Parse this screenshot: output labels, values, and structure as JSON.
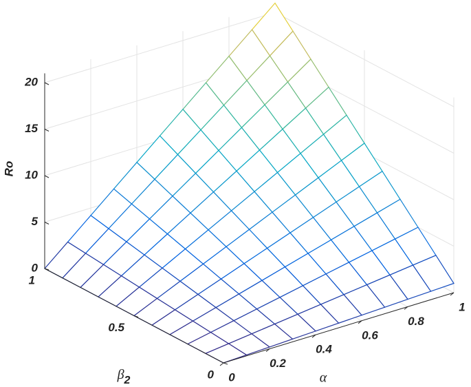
{
  "chart_data": {
    "type": "surface",
    "x_label": "α",
    "y_label": {
      "text": "β",
      "subscript": "2"
    },
    "z_label": "Ro",
    "x": [
      0,
      0.1,
      0.2,
      0.3,
      0.4,
      0.5,
      0.6,
      0.7,
      0.8,
      0.9,
      1
    ],
    "y": [
      0,
      0.1,
      0.2,
      0.3,
      0.4,
      0.5,
      0.6,
      0.7,
      0.8,
      0.9,
      1
    ],
    "z": [
      [
        0,
        0.1,
        0.2,
        0.3,
        0.4,
        0.5,
        0.6,
        0.7,
        0.8,
        0.9,
        1
      ],
      [
        0,
        0.3,
        0.6,
        0.9,
        1.2,
        1.5,
        1.8,
        2.1,
        2.4,
        2.7,
        3
      ],
      [
        0,
        0.5,
        1,
        1.5,
        2,
        2.5,
        3,
        3.5,
        4,
        4.5,
        5
      ],
      [
        0,
        0.7,
        1.4,
        2.1,
        2.8,
        3.5,
        4.2,
        4.9,
        5.6,
        6.3,
        7
      ],
      [
        0,
        0.9,
        1.8,
        2.7,
        3.6,
        4.5,
        5.4,
        6.3,
        7.2,
        8.1,
        9
      ],
      [
        0,
        1.1,
        2.2,
        3.3,
        4.4,
        5.5,
        6.6,
        7.7,
        8.8,
        9.9,
        11
      ],
      [
        0,
        1.3,
        2.6,
        3.9,
        5.2,
        6.5,
        7.8,
        9.1,
        10.4,
        11.7,
        13
      ],
      [
        0,
        1.5,
        3,
        4.5,
        6,
        7.5,
        9,
        10.5,
        12,
        13.5,
        15
      ],
      [
        0,
        1.7,
        3.4,
        5.1,
        6.8,
        8.5,
        10.2,
        11.9,
        13.6,
        15.3,
        17
      ],
      [
        0,
        1.9,
        3.8,
        5.7,
        7.6,
        9.5,
        11.4,
        13.3,
        15.2,
        17.1,
        19
      ],
      [
        0,
        2.1,
        4.2,
        6.3,
        8.4,
        10.5,
        12.6,
        14.7,
        16.8,
        18.9,
        21
      ]
    ],
    "xlim": [
      0,
      1
    ],
    "ylim": [
      0,
      1
    ],
    "zlim": [
      0,
      21
    ],
    "xticks": [
      0,
      0.2,
      0.4,
      0.6,
      0.8,
      1
    ],
    "yticks": [
      0,
      0.5,
      1
    ],
    "zticks": [
      0,
      5,
      10,
      15,
      20
    ],
    "grid": true,
    "colormap": [
      "#352a87",
      "#0363e1",
      "#1485d4",
      "#06a7c6",
      "#38b99e",
      "#92bf73",
      "#d9ba56",
      "#f9fb0e"
    ]
  }
}
